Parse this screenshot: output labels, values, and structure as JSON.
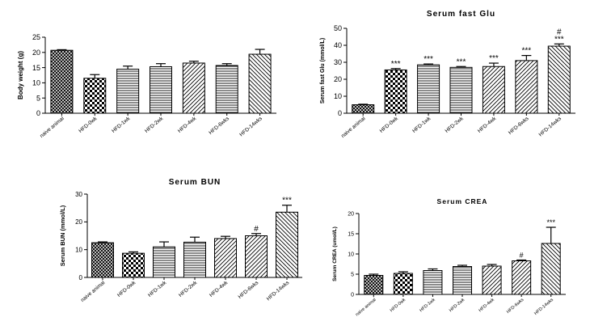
{
  "chart_data": [
    {
      "type": "bar",
      "title": "",
      "ylabel": "Body weight (g)",
      "xlabel": "",
      "ylim": [
        0,
        25
      ],
      "yticks": [
        0,
        5,
        10,
        15,
        20,
        25
      ],
      "categories": [
        "naive animal",
        "HFD-0wk",
        "HFD-1wk",
        "HFD-2wk",
        "HFD-4wk",
        "HFD-6wks",
        "HFD-14wks"
      ],
      "values": [
        20.7,
        11.5,
        14.5,
        15.3,
        16.5,
        15.7,
        19.4
      ],
      "errors": [
        0.2,
        1.2,
        1.0,
        1.0,
        0.6,
        0.6,
        1.6
      ],
      "patterns": [
        "crosshatch",
        "checker",
        "hlines",
        "hlines",
        "diag-right",
        "hlines",
        "diag-left"
      ],
      "annotations": [
        "",
        "",
        "",
        "",
        "",
        "",
        ""
      ],
      "grid": false
    },
    {
      "type": "bar",
      "title": "Serum fast Glu",
      "ylabel": "Serum fast Glu (mmol/L)",
      "xlabel": "",
      "ylim": [
        0,
        50
      ],
      "yticks": [
        0,
        10,
        20,
        30,
        40,
        50
      ],
      "categories": [
        "naive animal",
        "HFD-0wk",
        "HFD-1wk",
        "HFD-2wk",
        "HFD-4wk",
        "HFD-6wks",
        "HFD-14wks"
      ],
      "values": [
        5.0,
        25.5,
        28.5,
        27.0,
        27.5,
        31.0,
        39.5
      ],
      "errors": [
        0.3,
        0.8,
        0.5,
        0.5,
        2.0,
        3.0,
        1.3
      ],
      "patterns": [
        "crosshatch",
        "checker",
        "hlines",
        "hlines",
        "diag-right",
        "diag-right",
        "diag-left"
      ],
      "annotations": [
        "",
        "***",
        "***",
        "***",
        "***",
        "***",
        "#\n***"
      ],
      "grid": false
    },
    {
      "type": "bar",
      "title": "Serum BUN",
      "ylabel": "Serum BUN (mmol/L)",
      "xlabel": "",
      "ylim": [
        0,
        30
      ],
      "yticks": [
        0,
        10,
        20,
        30
      ],
      "categories": [
        "naive animal",
        "HFD-0wk",
        "HFD-1wk",
        "HFD-2wk",
        "HFD-4wk",
        "HFD-6wks",
        "HFD-14wks"
      ],
      "values": [
        12.5,
        8.7,
        11.0,
        12.7,
        14.0,
        15.0,
        23.5
      ],
      "errors": [
        0.3,
        0.5,
        1.8,
        1.8,
        0.8,
        0.8,
        2.5
      ],
      "patterns": [
        "crosshatch",
        "checker",
        "hlines",
        "hlines",
        "diag-right",
        "diag-right",
        "diag-left"
      ],
      "annotations": [
        "",
        "",
        "",
        "",
        "",
        "#",
        "***"
      ],
      "grid": false
    },
    {
      "type": "bar",
      "title": "Serum CREA",
      "ylabel": "Serum CREA (umol/L)",
      "xlabel": "",
      "ylim": [
        0,
        20
      ],
      "yticks": [
        0,
        5,
        10,
        15,
        20
      ],
      "categories": [
        "naive animal",
        "HFD-0wk",
        "HFD-1wk",
        "HFD-2wk",
        "HFD-4wk",
        "HFD-6wks",
        "HFD-14wks"
      ],
      "values": [
        4.7,
        5.2,
        5.9,
        6.9,
        7.0,
        8.3,
        12.6
      ],
      "errors": [
        0.3,
        0.4,
        0.4,
        0.3,
        0.4,
        0.2,
        4.0
      ],
      "patterns": [
        "crosshatch",
        "checker",
        "hlines",
        "hlines",
        "diag-right",
        "diag-right",
        "diag-left"
      ],
      "annotations": [
        "",
        "",
        "",
        "",
        "",
        "#",
        "***"
      ],
      "grid": false
    }
  ]
}
